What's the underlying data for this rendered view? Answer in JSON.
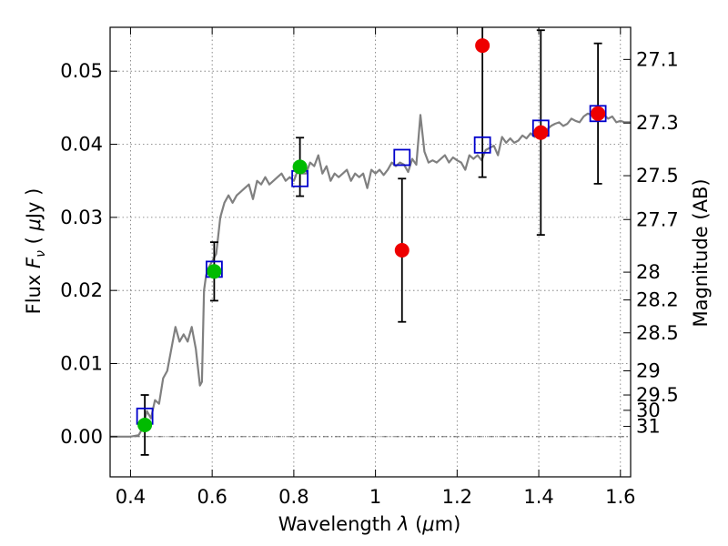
{
  "chart_data": {
    "type": "scatter",
    "title": "",
    "xlabel": "Wavelength  λ (μm)",
    "ylabel": "Flux  F_ν  ( μJy )",
    "ylabel_parts": {
      "prefix": "Flux  ",
      "symbol": "F",
      "subscript": "ν",
      "unit_open": "  ( ",
      "mu": "μ",
      "unit_rest": "Jy )"
    },
    "xlabel_parts": {
      "prefix": "Wavelength  ",
      "symbol": "λ",
      "unit_open": " (",
      "mu": "μ",
      "unit_rest": "m)"
    },
    "ylabel_right": "Magnitude (AB)",
    "xlim": [
      0.35,
      1.625
    ],
    "ylim": [
      -0.0055,
      0.056
    ],
    "grid": true,
    "x_ticks": [
      {
        "value": 0.4,
        "label": "0.4"
      },
      {
        "value": 0.6,
        "label": "0.6"
      },
      {
        "value": 0.8,
        "label": "0.8"
      },
      {
        "value": 1.0,
        "label": "1"
      },
      {
        "value": 1.2,
        "label": "1.2"
      },
      {
        "value": 1.4,
        "label": "1.4"
      },
      {
        "value": 1.6,
        "label": "1.6"
      }
    ],
    "y_ticks": [
      {
        "value": 0.0,
        "label": "0.00"
      },
      {
        "value": 0.01,
        "label": "0.01"
      },
      {
        "value": 0.02,
        "label": "0.02"
      },
      {
        "value": 0.03,
        "label": "0.03"
      },
      {
        "value": 0.04,
        "label": "0.04"
      },
      {
        "value": 0.05,
        "label": "0.05"
      }
    ],
    "right_ticks": [
      {
        "label": "27.1",
        "flux": 0.0516
      },
      {
        "label": "27.3",
        "flux": 0.0429
      },
      {
        "label": "27.5",
        "flux": 0.0357
      },
      {
        "label": "27.7",
        "flux": 0.0297
      },
      {
        "label": "28",
        "flux": 0.0225
      },
      {
        "label": "28.2",
        "flux": 0.0187
      },
      {
        "label": "28.5",
        "flux": 0.0142
      },
      {
        "label": "29",
        "flux": 0.009
      },
      {
        "label": "29.5",
        "flux": 0.0057
      },
      {
        "label": "30",
        "flux": 0.0036
      },
      {
        "label": "31",
        "flux": 0.0014
      }
    ],
    "model_spectrum": {
      "color": "#808080",
      "x": [
        0.35,
        0.4,
        0.42,
        0.43,
        0.44,
        0.45,
        0.46,
        0.47,
        0.48,
        0.49,
        0.5,
        0.51,
        0.52,
        0.53,
        0.54,
        0.55,
        0.56,
        0.57,
        0.575,
        0.58,
        0.585,
        0.59,
        0.6,
        0.61,
        0.62,
        0.63,
        0.64,
        0.65,
        0.66,
        0.67,
        0.68,
        0.69,
        0.7,
        0.71,
        0.72,
        0.73,
        0.74,
        0.75,
        0.76,
        0.77,
        0.78,
        0.79,
        0.8,
        0.81,
        0.82,
        0.83,
        0.84,
        0.85,
        0.86,
        0.87,
        0.88,
        0.89,
        0.9,
        0.91,
        0.92,
        0.93,
        0.94,
        0.95,
        0.96,
        0.97,
        0.98,
        0.99,
        1.0,
        1.01,
        1.02,
        1.03,
        1.04,
        1.05,
        1.06,
        1.07,
        1.08,
        1.09,
        1.1,
        1.11,
        1.12,
        1.13,
        1.14,
        1.15,
        1.16,
        1.17,
        1.18,
        1.19,
        1.2,
        1.21,
        1.22,
        1.23,
        1.24,
        1.25,
        1.26,
        1.27,
        1.28,
        1.29,
        1.3,
        1.31,
        1.32,
        1.33,
        1.34,
        1.35,
        1.36,
        1.37,
        1.38,
        1.39,
        1.4,
        1.41,
        1.42,
        1.43,
        1.44,
        1.45,
        1.46,
        1.47,
        1.48,
        1.49,
        1.5,
        1.51,
        1.52,
        1.53,
        1.54,
        1.55,
        1.56,
        1.57,
        1.58,
        1.59,
        1.6,
        1.61,
        1.625
      ],
      "y": [
        0.0,
        0.0,
        0.0002,
        0.0012,
        0.0035,
        0.0025,
        0.005,
        0.0045,
        0.008,
        0.009,
        0.012,
        0.015,
        0.013,
        0.014,
        0.013,
        0.015,
        0.012,
        0.007,
        0.0075,
        0.02,
        0.022,
        0.023,
        0.024,
        0.025,
        0.03,
        0.032,
        0.033,
        0.032,
        0.033,
        0.0335,
        0.034,
        0.0345,
        0.0325,
        0.035,
        0.0345,
        0.0355,
        0.0345,
        0.035,
        0.0355,
        0.036,
        0.035,
        0.0355,
        0.035,
        0.0365,
        0.036,
        0.036,
        0.0375,
        0.037,
        0.0385,
        0.036,
        0.037,
        0.035,
        0.036,
        0.0355,
        0.036,
        0.0365,
        0.035,
        0.036,
        0.0355,
        0.036,
        0.034,
        0.0365,
        0.036,
        0.0365,
        0.0358,
        0.0365,
        0.0375,
        0.037,
        0.0375,
        0.0372,
        0.0362,
        0.038,
        0.0372,
        0.044,
        0.039,
        0.0375,
        0.0378,
        0.0375,
        0.038,
        0.0385,
        0.0375,
        0.0382,
        0.0378,
        0.0375,
        0.0365,
        0.0385,
        0.038,
        0.0385,
        0.0378,
        0.0392,
        0.0395,
        0.0398,
        0.0385,
        0.041,
        0.0402,
        0.0408,
        0.0402,
        0.0405,
        0.0412,
        0.0408,
        0.0415,
        0.041,
        0.0418,
        0.0422,
        0.042,
        0.0425,
        0.0428,
        0.043,
        0.0425,
        0.0428,
        0.0435,
        0.0432,
        0.043,
        0.0438,
        0.0442,
        0.044,
        0.0445,
        0.0448,
        0.044,
        0.0435,
        0.0438,
        0.043,
        0.0432,
        0.043,
        0.043
      ]
    },
    "series": [
      {
        "marker": "open-square",
        "color": "#0000cc",
        "points": [
          {
            "x": 0.435,
            "y": 0.0028
          },
          {
            "x": 0.605,
            "y": 0.0229
          },
          {
            "x": 0.815,
            "y": 0.0353
          },
          {
            "x": 1.065,
            "y": 0.0382
          },
          {
            "x": 1.262,
            "y": 0.0399
          },
          {
            "x": 1.405,
            "y": 0.0422
          },
          {
            "x": 1.545,
            "y": 0.0442
          }
        ]
      },
      {
        "marker": "filled-circle",
        "color": "#00bb00",
        "points": [
          {
            "x": 0.435,
            "y": 0.0016,
            "err": 0.0041
          },
          {
            "x": 0.605,
            "y": 0.0226,
            "err": 0.004
          },
          {
            "x": 0.815,
            "y": 0.0369,
            "err": 0.004
          }
        ]
      },
      {
        "marker": "filled-circle",
        "color": "#ee0000",
        "points": [
          {
            "x": 1.065,
            "y": 0.0255,
            "err": 0.0098
          },
          {
            "x": 1.262,
            "y": 0.0535,
            "err": 0.018
          },
          {
            "x": 1.405,
            "y": 0.0416,
            "err": 0.014
          },
          {
            "x": 1.545,
            "y": 0.0442,
            "err": 0.0096
          }
        ]
      }
    ]
  }
}
